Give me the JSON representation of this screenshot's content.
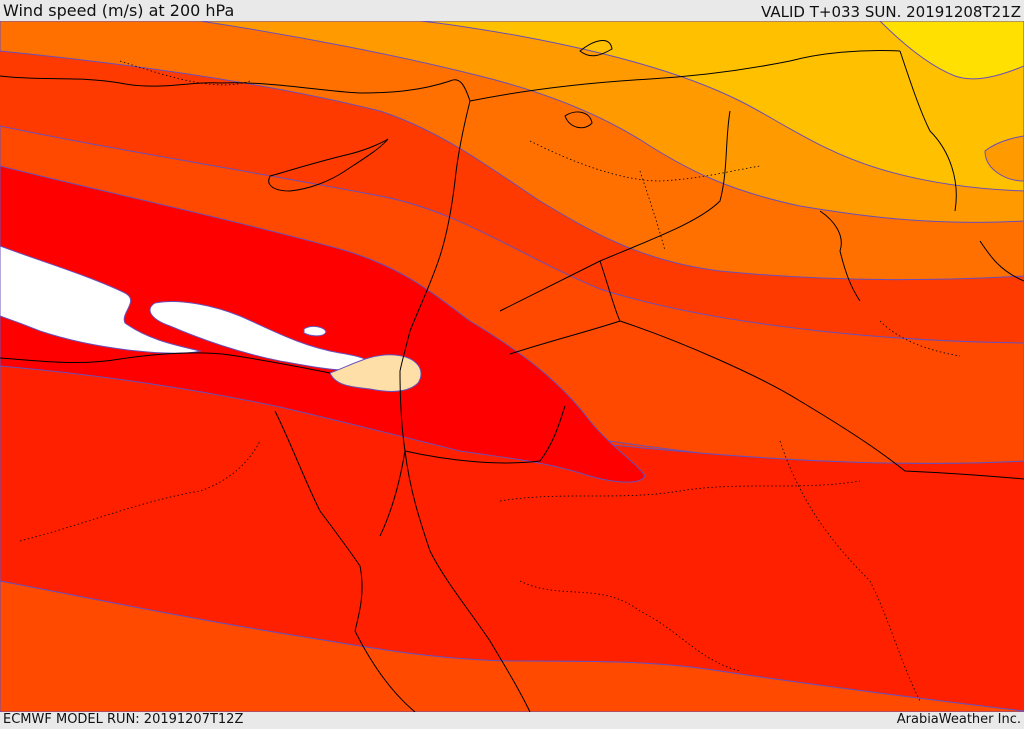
{
  "header": {
    "title": "Wind speed (m/s) at 200 hPa",
    "valid": "VALID T+033 SUN. 20191208T21Z"
  },
  "footer": {
    "model_run": "ECMWF MODEL RUN: 20191207T12Z",
    "credit": "ArabiaWeather Inc."
  },
  "map": {
    "field": "wind speed",
    "level": "200 hPa",
    "colors": {
      "band_1": "#ffe000",
      "band_2": "#ffc000",
      "band_3": "#ff9a00",
      "band_4": "#ff7000",
      "band_5": "#ff4800",
      "band_6": "#ff2000",
      "band_7": "#ff0000",
      "max_band": "#ffffff",
      "min_core": "#ffdfa8",
      "contour_line": "#6a4fb8",
      "border_line": "#000000"
    }
  }
}
